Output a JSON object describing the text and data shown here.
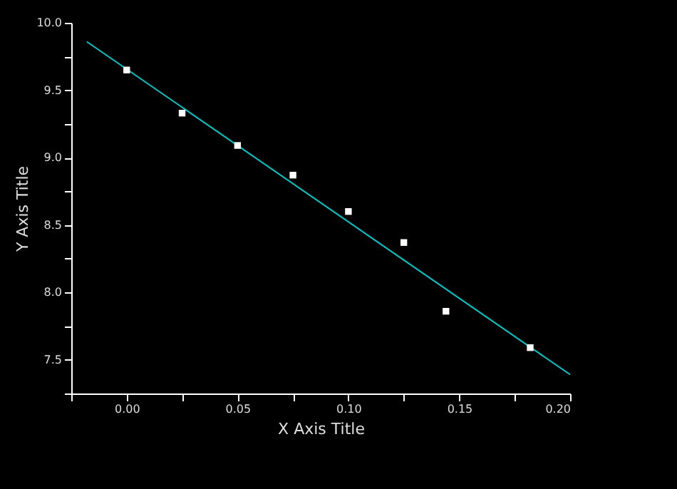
{
  "chart_data": {
    "type": "scatter",
    "xlabel": "X Axis Title",
    "ylabel": "Y Axis Title",
    "grid": false,
    "xlim": [
      -0.025,
      0.2
    ],
    "ylim": [
      7.25,
      10.0
    ],
    "xticks": [
      {
        "value": -0.025,
        "label": null
      },
      {
        "value": 0,
        "label": "0.00"
      },
      {
        "value": 0.025,
        "label": null
      },
      {
        "value": 0.05,
        "label": "0.05"
      },
      {
        "value": 0.075,
        "label": null
      },
      {
        "value": 0.1,
        "label": "0.10"
      },
      {
        "value": 0.125,
        "label": null
      },
      {
        "value": 0.15,
        "label": "0.15"
      },
      {
        "value": 0.175,
        "label": null
      },
      {
        "value": 0.2,
        "label": "0.20"
      }
    ],
    "yticks": [
      {
        "value": 7.25,
        "label": null
      },
      {
        "value": 7.5,
        "label": "7.5"
      },
      {
        "value": 7.75,
        "label": null
      },
      {
        "value": 8,
        "label": "8.0"
      },
      {
        "value": 8.25,
        "label": null
      },
      {
        "value": 8.5,
        "label": "8.5"
      },
      {
        "value": 8.75,
        "label": null
      },
      {
        "value": 9,
        "label": "9.0"
      },
      {
        "value": 9.25,
        "label": null
      },
      {
        "value": 9.5,
        "label": "9.5"
      },
      {
        "value": 9.75,
        "label": null
      },
      {
        "value": 10,
        "label": "10.0"
      }
    ],
    "series": [
      {
        "type": "scatter",
        "marker": "square",
        "color": "#ffffff",
        "x": [
          0,
          0.025,
          0.05,
          0.075,
          0.1,
          0.125,
          0.144,
          0.182
        ],
        "values": [
          9.65,
          9.33,
          9.09,
          8.87,
          8.6,
          8.37,
          7.86,
          7.59
        ]
      },
      {
        "type": "line",
        "color": "#00c8c8",
        "x": [
          -0.018,
          0.2
        ],
        "values": [
          9.86,
          7.39
        ]
      }
    ]
  }
}
